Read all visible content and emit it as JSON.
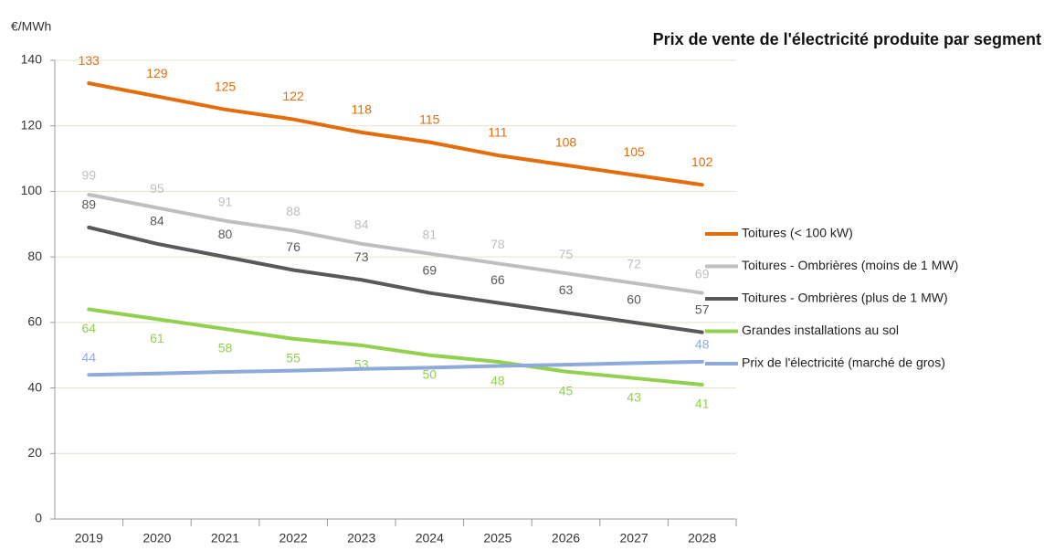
{
  "chart_data": {
    "type": "line",
    "title": "Prix de vente de l'électricité produite par segment",
    "y_label": "€/MWh",
    "categories": [
      "2019",
      "2020",
      "2021",
      "2022",
      "2023",
      "2024",
      "2025",
      "2026",
      "2027",
      "2028"
    ],
    "ylim": [
      0,
      140
    ],
    "yticks": [
      0,
      20,
      40,
      60,
      80,
      100,
      120,
      140
    ],
    "grid": true,
    "legend": "right",
    "series": [
      {
        "name": "Toitures (< 100 kW)",
        "color": "#e46c0a",
        "values": [
          133,
          129,
          125,
          122,
          118,
          115,
          111,
          108,
          105,
          102
        ]
      },
      {
        "name": "Toitures - Ombrières (moins de 1 MW)",
        "color": "#bfbfbf",
        "values": [
          99,
          95,
          91,
          88,
          84,
          81,
          78,
          75,
          72,
          69
        ]
      },
      {
        "name": "Toitures - Ombrières (plus de 1 MW)",
        "color": "#595959",
        "values": [
          89,
          84,
          80,
          76,
          73,
          69,
          66,
          63,
          60,
          57
        ]
      },
      {
        "name": "Grandes installations au sol",
        "color": "#92d050",
        "values": [
          64,
          61,
          58,
          55,
          53,
          50,
          48,
          45,
          43,
          41
        ]
      },
      {
        "name": "Prix de l'électricité (marché de gros)",
        "color": "#8eaadb",
        "values": [
          44,
          44.4,
          44.9,
          45.3,
          45.8,
          46.2,
          46.7,
          47.1,
          47.6,
          48
        ],
        "value_labels": [
          "44",
          null,
          null,
          null,
          null,
          null,
          null,
          null,
          null,
          "48"
        ]
      }
    ]
  }
}
